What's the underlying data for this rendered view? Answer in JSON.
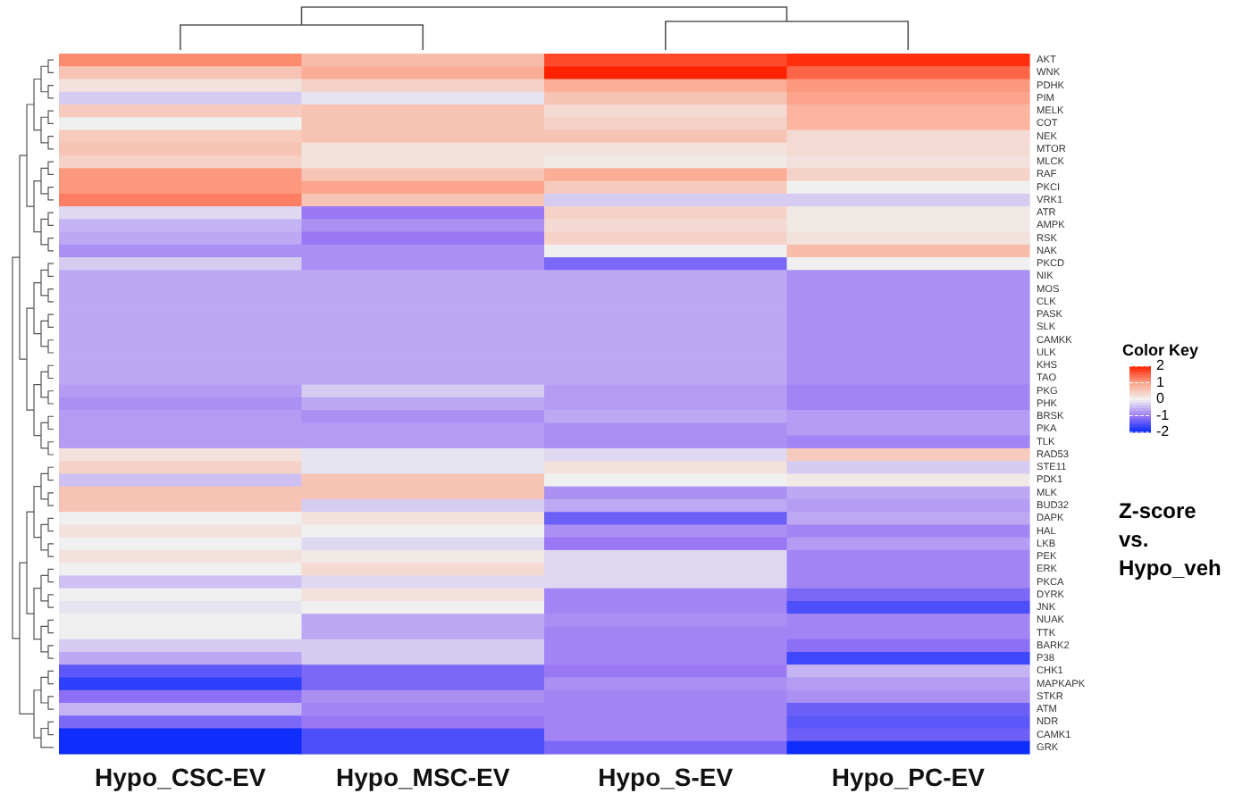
{
  "chart_data": {
    "type": "heatmap",
    "clabel": "Color Key",
    "annotations": [
      "Z-score vs. Hypo_veh"
    ],
    "categories": [
      "Hypo_CSC-EV",
      "Hypo_MSC-EV",
      "Hypo_S-EV",
      "Hypo_PC-EV"
    ],
    "y_categories": [
      "AKT",
      "WNK",
      "PDHK",
      "PIM",
      "MELK",
      "COT",
      "NEK",
      "MTOR",
      "MLCK",
      "RAF",
      "PKCI",
      "VRK1",
      "ATR",
      "AMPK",
      "RSK",
      "NAK",
      "PKCD",
      "NIK",
      "MOS",
      "CLK",
      "PASK",
      "SLK",
      "CAMKK",
      "ULK",
      "KHS",
      "TAO",
      "PKG",
      "PHK",
      "BRSK",
      "PKA",
      "TLK",
      "RAD53",
      "STE11",
      "PDK1",
      "MLK",
      "BUD32",
      "DAPK",
      "HAL",
      "LKB",
      "PEK",
      "ERK",
      "PKCA",
      "DYRK",
      "JNK",
      "NUAK",
      "TTK",
      "BARK2",
      "P38",
      "CHK1",
      "MAPKAPK",
      "STKR",
      "ATM",
      "NDR",
      "CAMK1",
      "GRK"
    ],
    "cells": [
      [
        1.2,
        0.7,
        1.7,
        1.9
      ],
      [
        0.6,
        0.9,
        2.0,
        1.5
      ],
      [
        0.2,
        0.4,
        0.9,
        1.1
      ],
      [
        -0.3,
        -0.1,
        0.6,
        1.0
      ],
      [
        0.5,
        0.6,
        0.3,
        0.8
      ],
      [
        0.0,
        0.6,
        0.4,
        0.8
      ],
      [
        0.5,
        0.6,
        0.6,
        0.3
      ],
      [
        0.6,
        0.2,
        0.2,
        0.3
      ],
      [
        0.4,
        0.2,
        0.1,
        0.2
      ],
      [
        1.1,
        0.6,
        0.9,
        0.4
      ],
      [
        1.1,
        1.0,
        0.5,
        0.0
      ],
      [
        1.3,
        0.6,
        -0.3,
        -0.3
      ],
      [
        -0.2,
        -1.0,
        0.4,
        0.1
      ],
      [
        -0.5,
        -0.8,
        0.3,
        0.1
      ],
      [
        -0.6,
        -1.0,
        0.4,
        0.2
      ],
      [
        -0.8,
        -0.8,
        0.0,
        0.7
      ],
      [
        -0.3,
        -0.8,
        -1.2,
        0.0
      ],
      [
        -0.6,
        -0.6,
        -0.6,
        -0.8
      ],
      [
        -0.6,
        -0.6,
        -0.6,
        -0.8
      ],
      [
        -0.6,
        -0.6,
        -0.6,
        -0.8
      ],
      [
        -0.6,
        -0.6,
        -0.6,
        -0.8
      ],
      [
        -0.6,
        -0.6,
        -0.6,
        -0.8
      ],
      [
        -0.6,
        -0.6,
        -0.6,
        -0.8
      ],
      [
        -0.6,
        -0.6,
        -0.6,
        -0.8
      ],
      [
        -0.6,
        -0.6,
        -0.6,
        -0.8
      ],
      [
        -0.6,
        -0.6,
        -0.6,
        -0.8
      ],
      [
        -0.7,
        -0.3,
        -0.7,
        -0.9
      ],
      [
        -0.8,
        -0.6,
        -0.7,
        -0.9
      ],
      [
        -0.7,
        -0.8,
        -0.6,
        -0.7
      ],
      [
        -0.7,
        -0.7,
        -0.8,
        -0.7
      ],
      [
        -0.7,
        -0.7,
        -0.8,
        -0.9
      ],
      [
        0.2,
        -0.1,
        -0.2,
        0.5
      ],
      [
        0.4,
        -0.1,
        0.2,
        -0.3
      ],
      [
        -0.4,
        0.6,
        0.0,
        0.1
      ],
      [
        0.6,
        0.6,
        -0.8,
        -0.6
      ],
      [
        0.6,
        -0.3,
        -0.6,
        -0.7
      ],
      [
        0.0,
        0.2,
        -1.3,
        -0.6
      ],
      [
        0.2,
        0.0,
        -0.8,
        -0.9
      ],
      [
        0.0,
        -0.2,
        -1.0,
        -0.7
      ],
      [
        0.2,
        0.1,
        -0.2,
        -0.9
      ],
      [
        0.0,
        0.3,
        -0.2,
        -0.9
      ],
      [
        -0.4,
        -0.2,
        -0.2,
        -0.9
      ],
      [
        0.0,
        0.2,
        -0.9,
        -1.2
      ],
      [
        -0.1,
        0.0,
        -0.9,
        -1.5
      ],
      [
        0.0,
        -0.6,
        -0.8,
        -0.9
      ],
      [
        0.0,
        -0.6,
        -0.9,
        -0.9
      ],
      [
        -0.3,
        -0.3,
        -0.9,
        -1.1
      ],
      [
        -0.6,
        -0.3,
        -0.9,
        -1.6
      ],
      [
        -1.4,
        -1.2,
        -1.0,
        -0.5
      ],
      [
        -1.7,
        -1.2,
        -0.8,
        -0.7
      ],
      [
        -1.1,
        -0.8,
        -0.9,
        -0.8
      ],
      [
        -0.5,
        -0.9,
        -0.9,
        -1.3
      ],
      [
        -1.2,
        -1.0,
        -0.9,
        -1.4
      ],
      [
        -1.9,
        -1.5,
        -0.9,
        -1.3
      ],
      [
        -1.9,
        -1.5,
        -1.2,
        -1.9
      ]
    ],
    "clim": [
      -2,
      2
    ],
    "cticks": [
      2,
      1,
      0,
      -1,
      -2
    ]
  }
}
